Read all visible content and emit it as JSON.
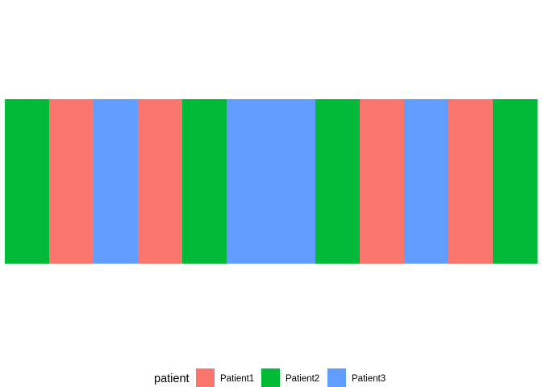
{
  "chart_data": {
    "type": "heatmap",
    "title": "",
    "xlabel": "",
    "ylabel": "",
    "grid": false,
    "legend": {
      "title": "patient",
      "position": "bottom",
      "entries": [
        {
          "name": "Patient1",
          "color": "#F8766D"
        },
        {
          "name": "Patient2",
          "color": "#00BA38"
        },
        {
          "name": "Patient3",
          "color": "#619CFF"
        }
      ]
    },
    "tiles": [
      "Patient2",
      "Patient1",
      "Patient3",
      "Patient1",
      "Patient2",
      "Patient3",
      "Patient3",
      "Patient2",
      "Patient1",
      "Patient3",
      "Patient1",
      "Patient2"
    ]
  }
}
